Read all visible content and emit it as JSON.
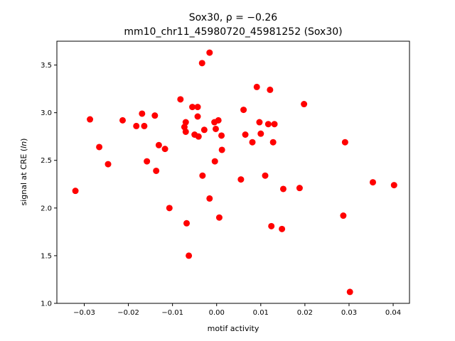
{
  "chart_data": {
    "type": "scatter",
    "title_line1": "Sox30, ρ = −0.26",
    "title_line2": "mm10_chr11_45980720_45981252 (Sox30)",
    "xlabel": "motif activity",
    "ylabel_prefix": "signal at CRE (",
    "ylabel_italic": "ln",
    "ylabel_suffix": ")",
    "xlim": [
      -0.0362,
      0.0437
    ],
    "ylim": [
      1.0,
      3.75
    ],
    "x_ticks": [
      -0.03,
      -0.02,
      -0.01,
      0.0,
      0.01,
      0.02,
      0.03,
      0.04
    ],
    "x_tick_labels": [
      "−0.03",
      "−0.02",
      "−0.01",
      "0.00",
      "0.01",
      "0.02",
      "0.03",
      "0.04"
    ],
    "y_ticks": [
      1.0,
      1.5,
      2.0,
      2.5,
      3.0,
      3.5
    ],
    "y_tick_labels": [
      "1.0",
      "1.5",
      "2.0",
      "2.5",
      "3.0",
      "3.5"
    ],
    "marker_color": "#ff0000",
    "grid": false,
    "points": [
      {
        "x": -0.032,
        "y": 2.18
      },
      {
        "x": -0.0287,
        "y": 2.93
      },
      {
        "x": -0.0266,
        "y": 2.64
      },
      {
        "x": -0.0246,
        "y": 2.46
      },
      {
        "x": -0.0213,
        "y": 2.92
      },
      {
        "x": -0.0182,
        "y": 2.86
      },
      {
        "x": -0.0169,
        "y": 2.99
      },
      {
        "x": -0.0164,
        "y": 2.86
      },
      {
        "x": -0.0158,
        "y": 2.49
      },
      {
        "x": -0.014,
        "y": 2.97
      },
      {
        "x": -0.0137,
        "y": 2.39
      },
      {
        "x": -0.0131,
        "y": 2.66
      },
      {
        "x": -0.0117,
        "y": 2.62
      },
      {
        "x": -0.0107,
        "y": 2.0
      },
      {
        "x": -0.0082,
        "y": 3.14
      },
      {
        "x": -0.0073,
        "y": 2.85
      },
      {
        "x": -0.007,
        "y": 2.9
      },
      {
        "x": -0.007,
        "y": 2.8
      },
      {
        "x": -0.0068,
        "y": 1.84
      },
      {
        "x": -0.0063,
        "y": 1.5
      },
      {
        "x": -0.0055,
        "y": 3.06
      },
      {
        "x": -0.005,
        "y": 2.77
      },
      {
        "x": -0.0043,
        "y": 3.06
      },
      {
        "x": -0.0043,
        "y": 2.96
      },
      {
        "x": -0.0041,
        "y": 2.75
      },
      {
        "x": -0.0033,
        "y": 3.52
      },
      {
        "x": -0.0032,
        "y": 2.34
      },
      {
        "x": -0.0028,
        "y": 2.82
      },
      {
        "x": -0.0016,
        "y": 3.63
      },
      {
        "x": -0.0016,
        "y": 2.1
      },
      {
        "x": -0.0005,
        "y": 2.9
      },
      {
        "x": -0.0004,
        "y": 2.49
      },
      {
        "x": -0.0002,
        "y": 2.83
      },
      {
        "x": 0.0004,
        "y": 2.92
      },
      {
        "x": 0.0006,
        "y": 1.9
      },
      {
        "x": 0.0011,
        "y": 2.76
      },
      {
        "x": 0.0012,
        "y": 2.61
      },
      {
        "x": 0.0055,
        "y": 2.3
      },
      {
        "x": 0.0061,
        "y": 3.03
      },
      {
        "x": 0.0065,
        "y": 2.77
      },
      {
        "x": 0.0081,
        "y": 2.69
      },
      {
        "x": 0.0091,
        "y": 3.27
      },
      {
        "x": 0.0097,
        "y": 2.9
      },
      {
        "x": 0.01,
        "y": 2.78
      },
      {
        "x": 0.011,
        "y": 2.34
      },
      {
        "x": 0.0117,
        "y": 2.88
      },
      {
        "x": 0.0121,
        "y": 3.24
      },
      {
        "x": 0.0124,
        "y": 1.81
      },
      {
        "x": 0.0128,
        "y": 2.69
      },
      {
        "x": 0.0131,
        "y": 2.88
      },
      {
        "x": 0.0148,
        "y": 1.78
      },
      {
        "x": 0.0151,
        "y": 2.2
      },
      {
        "x": 0.0188,
        "y": 2.21
      },
      {
        "x": 0.0198,
        "y": 3.09
      },
      {
        "x": 0.0287,
        "y": 1.92
      },
      {
        "x": 0.0291,
        "y": 2.69
      },
      {
        "x": 0.0302,
        "y": 1.12
      },
      {
        "x": 0.0354,
        "y": 2.27
      },
      {
        "x": 0.0402,
        "y": 2.24
      }
    ]
  }
}
